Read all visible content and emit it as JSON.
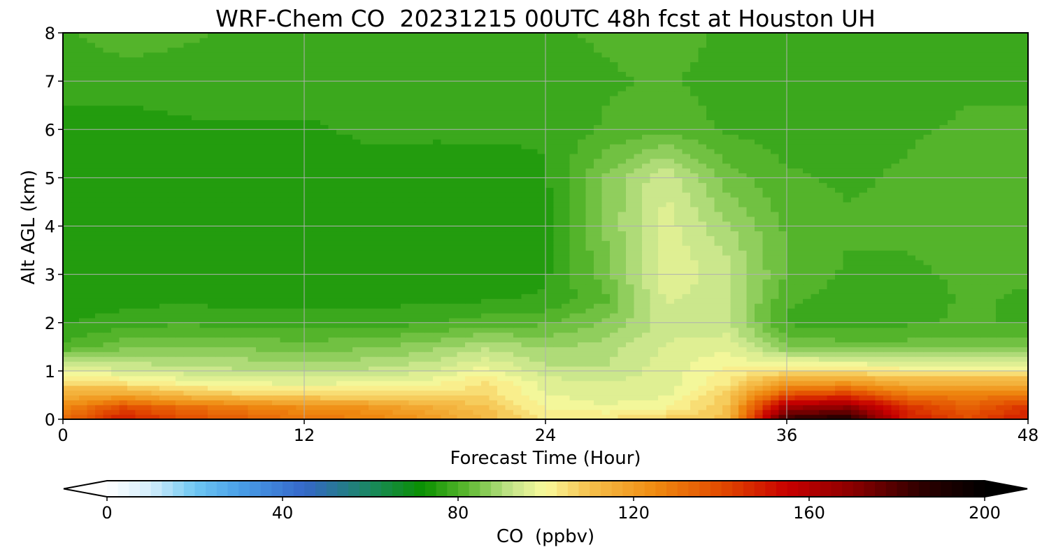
{
  "chart_data": {
    "type": "heatmap",
    "title": "WRF-Chem CO  20231215 00UTC 48h fcst at Houston UH",
    "xlabel": "Forecast Time (Hour)",
    "ylabel": "Alt AGL (km)",
    "x_ticks": [
      "0",
      "12",
      "24",
      "36",
      "48"
    ],
    "y_ticks": [
      "0",
      "1",
      "2",
      "3",
      "4",
      "5",
      "6",
      "7",
      "8"
    ],
    "xlim": [
      0,
      48
    ],
    "ylim": [
      0,
      8
    ],
    "grid": true,
    "x": [
      0,
      3,
      6,
      9,
      12,
      15,
      18,
      21,
      24,
      27,
      30,
      33,
      36,
      39,
      42,
      45,
      48
    ],
    "y": [
      0,
      0.25,
      0.5,
      0.75,
      1,
      1.5,
      2,
      2.5,
      3,
      4,
      5,
      6,
      7,
      8
    ],
    "z": [
      [
        132,
        150,
        140,
        135,
        130,
        128,
        122,
        112,
        103,
        104,
        108,
        110,
        185,
        190,
        150,
        140,
        150
      ],
      [
        125,
        140,
        132,
        128,
        124,
        122,
        116,
        110,
        100,
        98,
        100,
        110,
        165,
        170,
        145,
        135,
        145
      ],
      [
        115,
        118,
        112,
        108,
        106,
        106,
        105,
        106,
        98,
        96,
        97,
        108,
        140,
        145,
        130,
        128,
        130
      ],
      [
        106,
        104,
        100,
        98,
        97,
        98,
        99,
        104,
        96,
        95,
        96,
        103,
        120,
        122,
        115,
        115,
        115
      ],
      [
        98,
        95,
        93,
        92,
        91,
        92,
        94,
        99,
        93,
        92,
        96,
        101,
        104,
        104,
        102,
        102,
        102
      ],
      [
        80,
        85,
        86,
        85,
        84,
        85,
        87,
        91,
        88,
        90,
        95,
        97,
        86,
        84,
        84,
        84,
        84
      ],
      [
        76,
        78,
        79,
        78,
        78,
        78,
        79,
        81,
        82,
        86,
        93,
        92,
        79,
        78,
        79,
        80,
        79
      ],
      [
        75,
        75,
        76,
        75,
        75,
        75,
        76,
        76,
        77,
        82,
        95,
        92,
        80,
        78,
        78,
        80,
        79
      ],
      [
        75,
        74,
        75,
        74,
        74,
        74,
        74,
        74,
        76,
        84,
        97,
        93,
        82,
        79,
        79,
        80,
        80
      ],
      [
        74,
        74,
        74,
        74,
        74,
        74,
        74,
        74,
        75,
        86,
        96,
        89,
        82,
        80,
        80,
        81,
        81
      ],
      [
        75,
        74,
        74,
        74,
        75,
        75,
        75,
        75,
        76,
        86,
        94,
        84,
        80,
        79,
        80,
        82,
        82
      ],
      [
        76,
        75,
        76,
        76,
        76,
        77,
        77,
        77,
        77,
        80,
        82,
        79,
        78,
        78,
        79,
        80,
        80
      ],
      [
        77,
        78,
        78,
        78,
        78,
        78,
        78,
        78,
        78,
        79,
        80,
        78,
        78,
        78,
        78,
        79,
        79
      ],
      [
        79,
        81,
        80,
        79,
        79,
        79,
        79,
        79,
        79,
        80,
        81,
        79,
        78,
        79,
        79,
        79,
        79
      ]
    ],
    "colorbar": {
      "label": "CO  (ppbv)",
      "ticks": [
        "0",
        "40",
        "80",
        "120",
        "160",
        "200"
      ],
      "min": 0,
      "max": 200,
      "extend": "both",
      "stops": [
        {
          "v": 0,
          "c": "#ffffff"
        },
        {
          "v": 10,
          "c": "#d4eefb"
        },
        {
          "v": 20,
          "c": "#6ec7f2"
        },
        {
          "v": 30,
          "c": "#4aa0e8"
        },
        {
          "v": 45,
          "c": "#3567c9"
        },
        {
          "v": 60,
          "c": "#1a8860"
        },
        {
          "v": 72,
          "c": "#0a9000"
        },
        {
          "v": 82,
          "c": "#5cb830"
        },
        {
          "v": 92,
          "c": "#c4e48a"
        },
        {
          "v": 100,
          "c": "#fafa9c"
        },
        {
          "v": 110,
          "c": "#f5c04c"
        },
        {
          "v": 125,
          "c": "#ef8a10"
        },
        {
          "v": 140,
          "c": "#e24a00"
        },
        {
          "v": 155,
          "c": "#c80000"
        },
        {
          "v": 170,
          "c": "#8a0000"
        },
        {
          "v": 185,
          "c": "#300000"
        },
        {
          "v": 200,
          "c": "#000000"
        }
      ]
    }
  }
}
